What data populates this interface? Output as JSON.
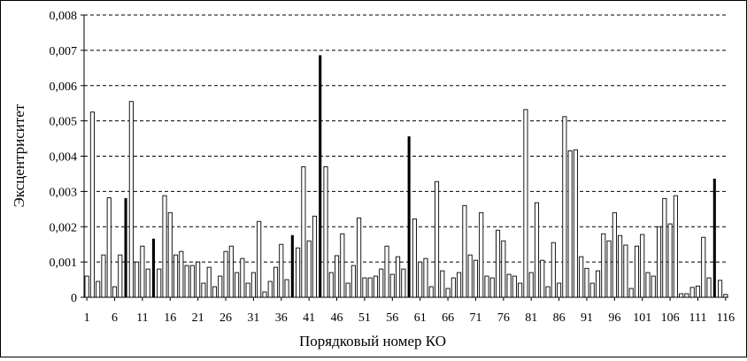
{
  "chart_data": {
    "type": "bar",
    "title": "",
    "xlabel": "Порядковый номер КО",
    "ylabel": "Эксцентриситет",
    "ylim": [
      0,
      0.008
    ],
    "yticks": [
      "0",
      "0,001",
      "0,002",
      "0,003",
      "0,004",
      "0,005",
      "0,006",
      "0,007",
      "0,008"
    ],
    "xticks": [
      "1",
      "6",
      "11",
      "16",
      "21",
      "26",
      "31",
      "36",
      "41",
      "46",
      "51",
      "56",
      "61",
      "66",
      "71",
      "76",
      "81",
      "86",
      "91",
      "96",
      "101",
      "106",
      "111",
      "116"
    ],
    "grid": "horizontal dashed",
    "categories": [
      1,
      2,
      3,
      4,
      5,
      6,
      7,
      8,
      9,
      10,
      11,
      12,
      13,
      14,
      15,
      16,
      17,
      18,
      19,
      20,
      21,
      22,
      23,
      24,
      25,
      26,
      27,
      28,
      29,
      30,
      31,
      32,
      33,
      34,
      35,
      36,
      37,
      38,
      39,
      40,
      41,
      42,
      43,
      44,
      45,
      46,
      47,
      48,
      49,
      50,
      51,
      52,
      53,
      54,
      55,
      56,
      57,
      58,
      59,
      60,
      61,
      62,
      63,
      64,
      65,
      66,
      67,
      68,
      69,
      70,
      71,
      72,
      73,
      74,
      75,
      76,
      77,
      78,
      79,
      80,
      81,
      82,
      83,
      84,
      85,
      86,
      87,
      88,
      89,
      90,
      91,
      92,
      93,
      94,
      95,
      96,
      97,
      98,
      99,
      100,
      101,
      102,
      103,
      104,
      105,
      106,
      107,
      108,
      109,
      110,
      111,
      112,
      113,
      114,
      115,
      116
    ],
    "values": [
      0.0006,
      0.00525,
      0.00045,
      0.0012,
      0.00282,
      0.0003,
      0.0012,
      0.0028,
      0.00555,
      0.001,
      0.00145,
      0.0008,
      0.00165,
      0.0008,
      0.00288,
      0.0024,
      0.0012,
      0.0013,
      0.0009,
      0.0009,
      0.001,
      0.0004,
      0.00085,
      0.0003,
      0.0006,
      0.0013,
      0.00145,
      0.0007,
      0.0011,
      0.0004,
      0.0007,
      0.00215,
      0.00015,
      0.00045,
      0.00085,
      0.0015,
      0.0005,
      0.00175,
      0.0014,
      0.0037,
      0.0016,
      0.0023,
      0.00685,
      0.0037,
      0.0007,
      0.00118,
      0.0018,
      0.0004,
      0.0009,
      0.00225,
      0.00055,
      0.00055,
      0.0006,
      0.0008,
      0.00145,
      0.00065,
      0.00115,
      0.0008,
      0.00455,
      0.00222,
      0.001,
      0.0011,
      0.0003,
      0.00328,
      0.00075,
      0.00025,
      0.00055,
      0.0007,
      0.0026,
      0.0012,
      0.00105,
      0.0024,
      0.0006,
      0.00055,
      0.0019,
      0.0016,
      0.00065,
      0.0006,
      0.0004,
      0.00532,
      0.0007,
      0.00268,
      0.00105,
      0.0003,
      0.00155,
      0.0004,
      0.00512,
      0.00415,
      0.00418,
      0.00115,
      0.00082,
      0.0004,
      0.00075,
      0.0018,
      0.0016,
      0.0024,
      0.00175,
      0.00148,
      0.00025,
      0.00145,
      0.00178,
      0.0007,
      0.0006,
      0.002,
      0.0028,
      0.00208,
      0.00288,
      0.0001,
      0.0001,
      0.00028,
      0.00032,
      0.0017,
      0.00055,
      0.00335,
      0.00048,
      8e-05
    ],
    "emphasized": [
      8,
      13,
      38,
      43,
      59,
      114
    ]
  }
}
